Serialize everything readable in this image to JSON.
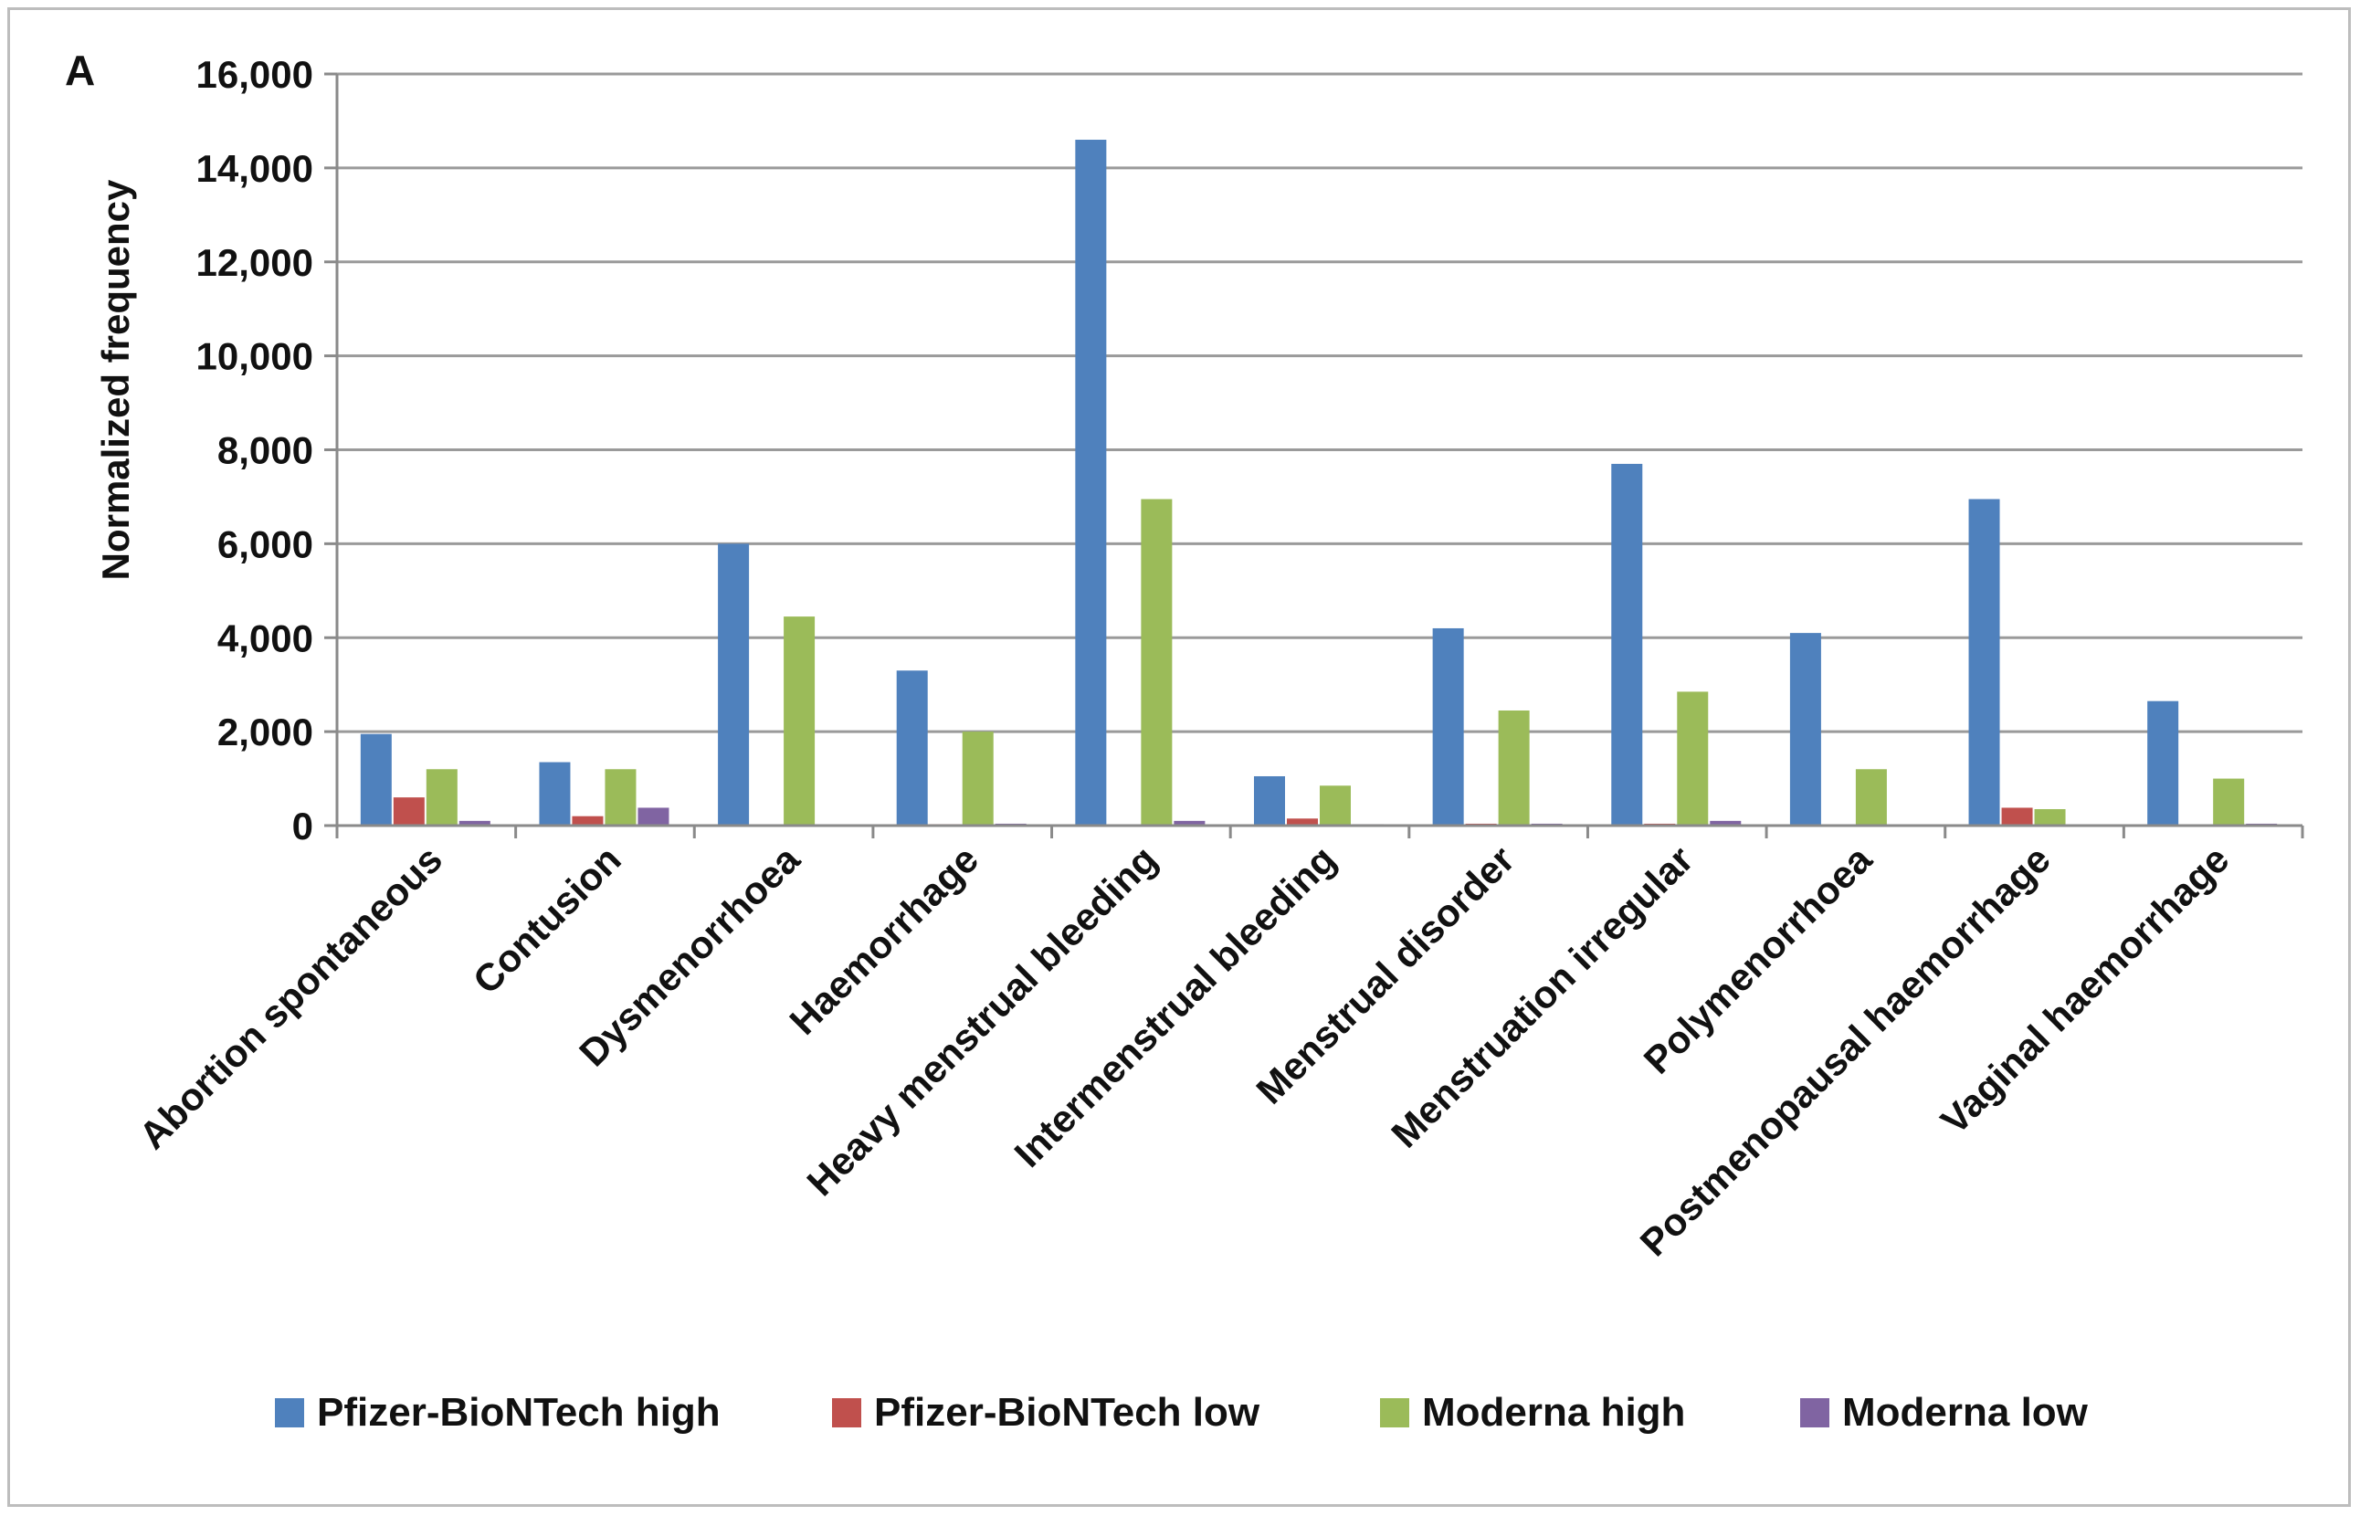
{
  "chart_data": {
    "type": "bar",
    "panel_label": "A",
    "title": "",
    "xlabel": "",
    "ylabel": "Normalized frequency",
    "ylim": [
      0,
      16000
    ],
    "yticks": [
      0,
      2000,
      4000,
      6000,
      8000,
      10000,
      12000,
      14000,
      16000
    ],
    "ytick_labels": [
      "0",
      "2,000",
      "4,000",
      "6,000",
      "8,000",
      "10,000",
      "12,000",
      "14,000",
      "16,000"
    ],
    "grid": true,
    "legend_position": "bottom",
    "categories": [
      "Abortion spontaneous",
      "Contusion",
      "Dysmenorrhoea",
      "Haemorrhage",
      "Heavy menstrual bleeding",
      "Intermenstrual bleeding",
      "Menstrual disorder",
      "Menstruation irregular",
      "Polymenorrhoea",
      "Postmenopausal haemorrhage",
      "Vaginal haemorrhage"
    ],
    "series": [
      {
        "name": "Pfizer-BioNTech high",
        "color": "#4f81bd",
        "values": [
          1950,
          1350,
          6000,
          3300,
          14600,
          1050,
          4200,
          7700,
          4100,
          6950,
          2650
        ]
      },
      {
        "name": "Pfizer-BioNTech low",
        "color": "#c0504d",
        "values": [
          600,
          200,
          0,
          30,
          0,
          150,
          40,
          40,
          0,
          380,
          0
        ]
      },
      {
        "name": "Moderna high",
        "color": "#9bbb59",
        "values": [
          1200,
          1200,
          4450,
          2000,
          6950,
          850,
          2450,
          2850,
          1200,
          350,
          1000
        ]
      },
      {
        "name": "Moderna low",
        "color": "#8064a2",
        "values": [
          100,
          380,
          0,
          40,
          100,
          30,
          40,
          100,
          0,
          0,
          40
        ]
      }
    ]
  }
}
